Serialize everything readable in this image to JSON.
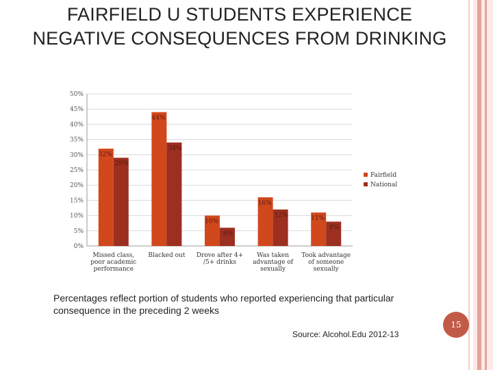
{
  "slide": {
    "title": "FAIRFIELD U STUDENTS EXPERIENCE NEGATIVE CONSEQUENCES FROM DRINKING",
    "caption": "Percentages reflect portion of students who reported experiencing that particular consequence in the preceding 2 weeks",
    "page_number": "15",
    "source": "Source: Alcohol.Edu 2012-13"
  },
  "colors": {
    "fairfield": "#d1481d",
    "national": "#9c2f1f",
    "badge": "#c25a48"
  },
  "chart_data": {
    "type": "bar",
    "categories": [
      [
        "Missed class,",
        "poor academic",
        "performance"
      ],
      [
        "Blacked out"
      ],
      [
        "Drove after 4+",
        "/5+ drinks"
      ],
      [
        "Was taken",
        "advantage of",
        "sexually"
      ],
      [
        "Took advantage",
        "of someone",
        "sexually"
      ]
    ],
    "series": [
      {
        "name": "Fairfield",
        "values": [
          32,
          44,
          10,
          16,
          11
        ],
        "labels": [
          "32%",
          "44%",
          "10%",
          "16%",
          "11%"
        ]
      },
      {
        "name": "National",
        "values": [
          29,
          34,
          6,
          12,
          8
        ],
        "labels": [
          "29%",
          "34%",
          "6%",
          "12%",
          "8%"
        ]
      }
    ],
    "yticks": [
      "0%",
      "5%",
      "10%",
      "15%",
      "20%",
      "25%",
      "30%",
      "35%",
      "40%",
      "45%",
      "50%"
    ],
    "ylim": [
      0,
      50
    ],
    "grid": true,
    "legend": "right"
  }
}
